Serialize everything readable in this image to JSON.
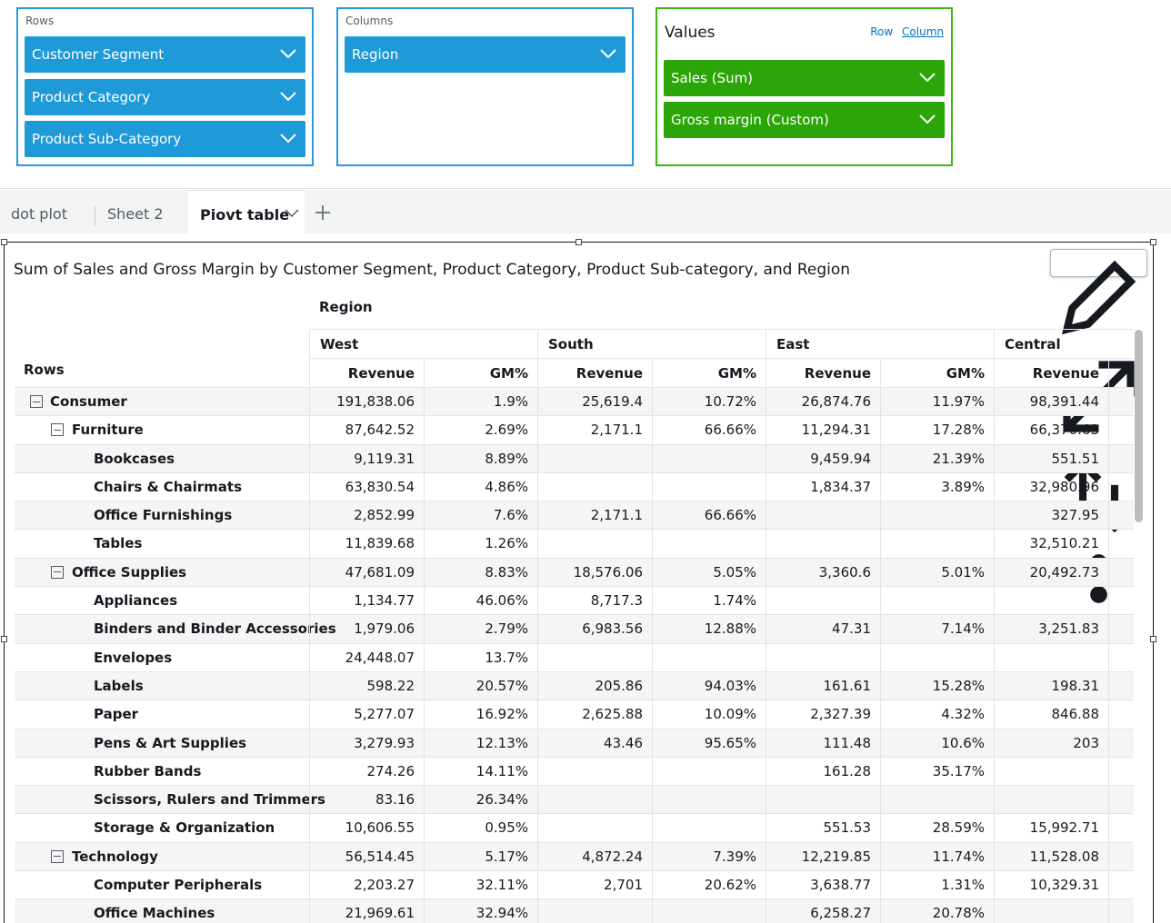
{
  "field_wells": {
    "rows": {
      "title": "Rows",
      "fields": [
        "Customer Segment",
        "Product Category",
        "Product Sub-Category"
      ]
    },
    "columns": {
      "title": "Columns",
      "fields": [
        "Region"
      ]
    },
    "values": {
      "title": "Values",
      "orientation_row": "Row",
      "orientation_column": "Column",
      "fields": [
        "Sales (Sum)",
        "Gross margin (Custom)"
      ]
    }
  },
  "sheet_tabs": [
    "dot plot",
    "Sheet 2",
    "Piovt table"
  ],
  "active_tab": "Piovt table",
  "visual": {
    "title": "Sum of Sales and Gross Margin by Customer Segment, Product Category, Product Sub-category, and Region",
    "column_field": "Region",
    "rows_label": "Rows",
    "regions": [
      "West",
      "South",
      "East",
      "Central"
    ],
    "measure_revenue": "Revenue",
    "measure_gm": "GM%",
    "rows": [
      {
        "level": 0,
        "label": "Consumer",
        "values": [
          "191,838.06",
          "1.9%",
          "25,619.4",
          "10.72%",
          "26,874.76",
          "11.97%",
          "98,391.44"
        ]
      },
      {
        "level": 1,
        "label": "Furniture",
        "values": [
          "87,642.52",
          "2.69%",
          "2,171.1",
          "66.66%",
          "11,294.31",
          "17.28%",
          "66,370.63"
        ]
      },
      {
        "level": 2,
        "label": "Bookcases",
        "values": [
          "9,119.31",
          "8.89%",
          "",
          "",
          "9,459.94",
          "21.39%",
          "551.51"
        ]
      },
      {
        "level": 2,
        "label": "Chairs & Chairmats",
        "values": [
          "63,830.54",
          "4.86%",
          "",
          "",
          "1,834.37",
          "3.89%",
          "32,980.96"
        ]
      },
      {
        "level": 2,
        "label": "Office Furnishings",
        "values": [
          "2,852.99",
          "7.6%",
          "2,171.1",
          "66.66%",
          "",
          "",
          "327.95"
        ]
      },
      {
        "level": 2,
        "label": "Tables",
        "values": [
          "11,839.68",
          "1.26%",
          "",
          "",
          "",
          "",
          "32,510.21"
        ]
      },
      {
        "level": 1,
        "label": "Office Supplies",
        "values": [
          "47,681.09",
          "8.83%",
          "18,576.06",
          "5.05%",
          "3,360.6",
          "5.01%",
          "20,492.73"
        ]
      },
      {
        "level": 2,
        "label": "Appliances",
        "values": [
          "1,134.77",
          "46.06%",
          "8,717.3",
          "1.74%",
          "",
          "",
          ""
        ]
      },
      {
        "level": 2,
        "label": "Binders and Binder Accessories",
        "values": [
          "1,979.06",
          "2.79%",
          "6,983.56",
          "12.88%",
          "47.31",
          "7.14%",
          "3,251.83"
        ]
      },
      {
        "level": 2,
        "label": "Envelopes",
        "values": [
          "24,448.07",
          "13.7%",
          "",
          "",
          "",
          "",
          ""
        ]
      },
      {
        "level": 2,
        "label": "Labels",
        "values": [
          "598.22",
          "20.57%",
          "205.86",
          "94.03%",
          "161.61",
          "15.28%",
          "198.31"
        ]
      },
      {
        "level": 2,
        "label": "Paper",
        "values": [
          "5,277.07",
          "16.92%",
          "2,625.88",
          "10.09%",
          "2,327.39",
          "4.32%",
          "846.88"
        ]
      },
      {
        "level": 2,
        "label": "Pens & Art Supplies",
        "values": [
          "3,279.93",
          "12.13%",
          "43.46",
          "95.65%",
          "111.48",
          "10.6%",
          "203"
        ]
      },
      {
        "level": 2,
        "label": "Rubber Bands",
        "values": [
          "274.26",
          "14.11%",
          "",
          "",
          "161.28",
          "35.17%",
          ""
        ]
      },
      {
        "level": 2,
        "label": "Scissors, Rulers and Trimmers",
        "values": [
          "83.16",
          "26.34%",
          "",
          "",
          "",
          "",
          ""
        ]
      },
      {
        "level": 2,
        "label": "Storage & Organization",
        "values": [
          "10,606.55",
          "0.95%",
          "",
          "",
          "551.53",
          "28.59%",
          "15,992.71"
        ]
      },
      {
        "level": 1,
        "label": "Technology",
        "values": [
          "56,514.45",
          "5.17%",
          "4,872.24",
          "7.39%",
          "12,219.85",
          "11.74%",
          "11,528.08"
        ]
      },
      {
        "level": 2,
        "label": "Computer Peripherals",
        "values": [
          "2,203.27",
          "32.11%",
          "2,701",
          "20.62%",
          "3,638.77",
          "1.31%",
          "10,329.31"
        ]
      },
      {
        "level": 2,
        "label": "Office Machines",
        "values": [
          "21,969.61",
          "32.94%",
          "",
          "",
          "6,258.27",
          "20.78%",
          ""
        ]
      }
    ]
  },
  "colors": {
    "rows_well": "#2a9ad6",
    "values_well": "#3bb510",
    "link": "#0073bb"
  }
}
